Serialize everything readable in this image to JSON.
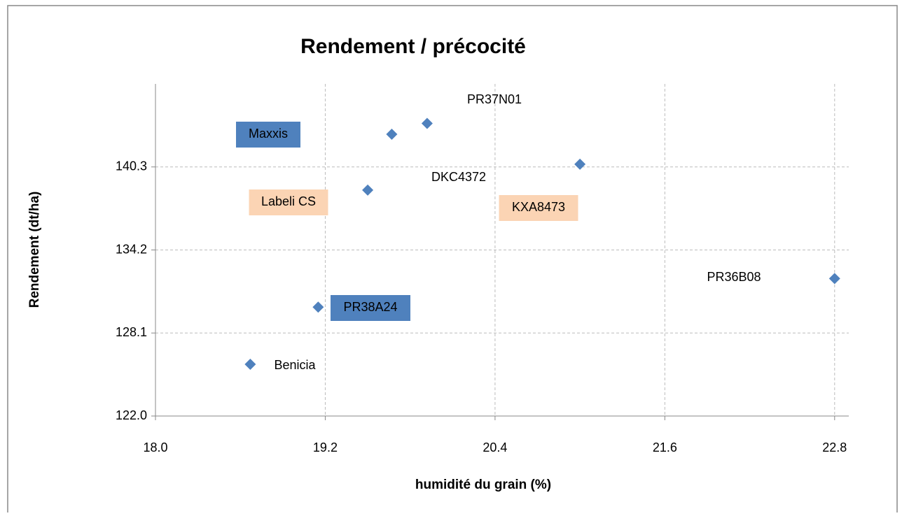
{
  "chart_data": {
    "type": "scatter",
    "title": "Rendement / précocité",
    "xlabel": "humidité du grain (%)",
    "ylabel": "Rendement (dt/ha)",
    "x": [
      18.67,
      19.15,
      19.5,
      19.67,
      19.92,
      21.0,
      22.8
    ],
    "y": [
      125.8,
      130.0,
      138.6,
      142.7,
      143.5,
      140.5,
      132.1
    ],
    "point_labels": [
      "Benicia",
      "PR38A24",
      "Labeli CS",
      "Maxxis",
      "PR37N01",
      "DKC4372",
      "PR36B08"
    ],
    "label_boxes": [
      null,
      "#4f81bd",
      "#fbd4b4",
      "#4f81bd",
      null,
      null,
      null
    ],
    "annotations": [
      {
        "text": "KXA8473",
        "box": "#fbd4b4"
      }
    ],
    "color": "#4f81bd",
    "xlim": [
      18.0,
      22.9
    ],
    "xticks": [
      {
        "value": 18.0,
        "label": "18.0"
      },
      19.2,
      20.4,
      21.6,
      22.8
    ],
    "ylim": [
      122.0,
      146.4
    ],
    "yticks": [
      {
        "value": 122.0,
        "label": "122.0"
      },
      128.1,
      134.2,
      140.3
    ],
    "grid": true
  }
}
